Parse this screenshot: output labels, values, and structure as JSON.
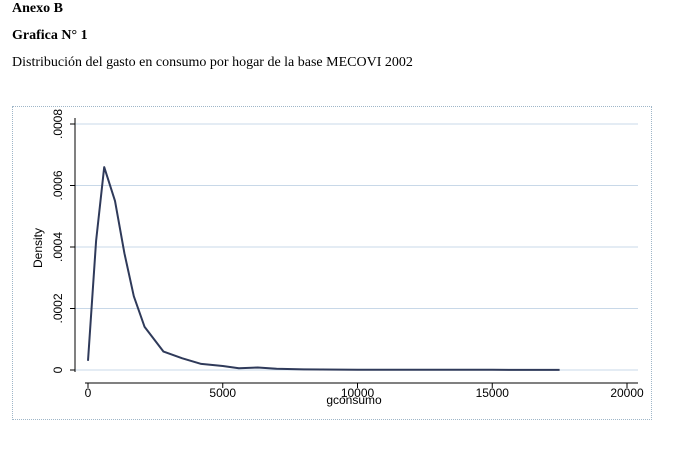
{
  "header": {
    "annex": "Anexo B",
    "figure": "Grafica N° 1",
    "caption": "Distribución del gasto en consumo por hogar de la base MECOVI 2002"
  },
  "chart_data": {
    "type": "line",
    "xlabel": "gconsumo",
    "ylabel": "Density",
    "xlim": [
      0,
      20000
    ],
    "ylim": [
      0,
      0.0008
    ],
    "xticks": [
      0,
      5000,
      10000,
      15000,
      20000
    ],
    "xtick_labels": [
      "0",
      "5000",
      "10000",
      "15000",
      "20000"
    ],
    "yticks": [
      0,
      0.0002,
      0.0004,
      0.0006,
      0.0008
    ],
    "ytick_labels": [
      "0",
      ".0002",
      ".0004",
      ".0006",
      ".0008"
    ],
    "grid": true,
    "line_color": "#2f3a5a",
    "grid_color": "#c8d8e8",
    "series": [
      {
        "x": [
          0,
          300,
          600,
          1000,
          1350,
          1700,
          2100,
          2800,
          3500,
          4200,
          5000,
          5600,
          6300,
          7000,
          8000,
          10000,
          12500,
          15000,
          17500
        ],
        "y": [
          3e-05,
          0.00042,
          0.00066,
          0.00055,
          0.00038,
          0.00024,
          0.00014,
          6e-05,
          3.8e-05,
          2e-05,
          1.3e-05,
          6e-06,
          8e-06,
          4e-06,
          2e-06,
          1e-06,
          1e-06,
          5e-07,
          3e-07
        ]
      }
    ]
  }
}
